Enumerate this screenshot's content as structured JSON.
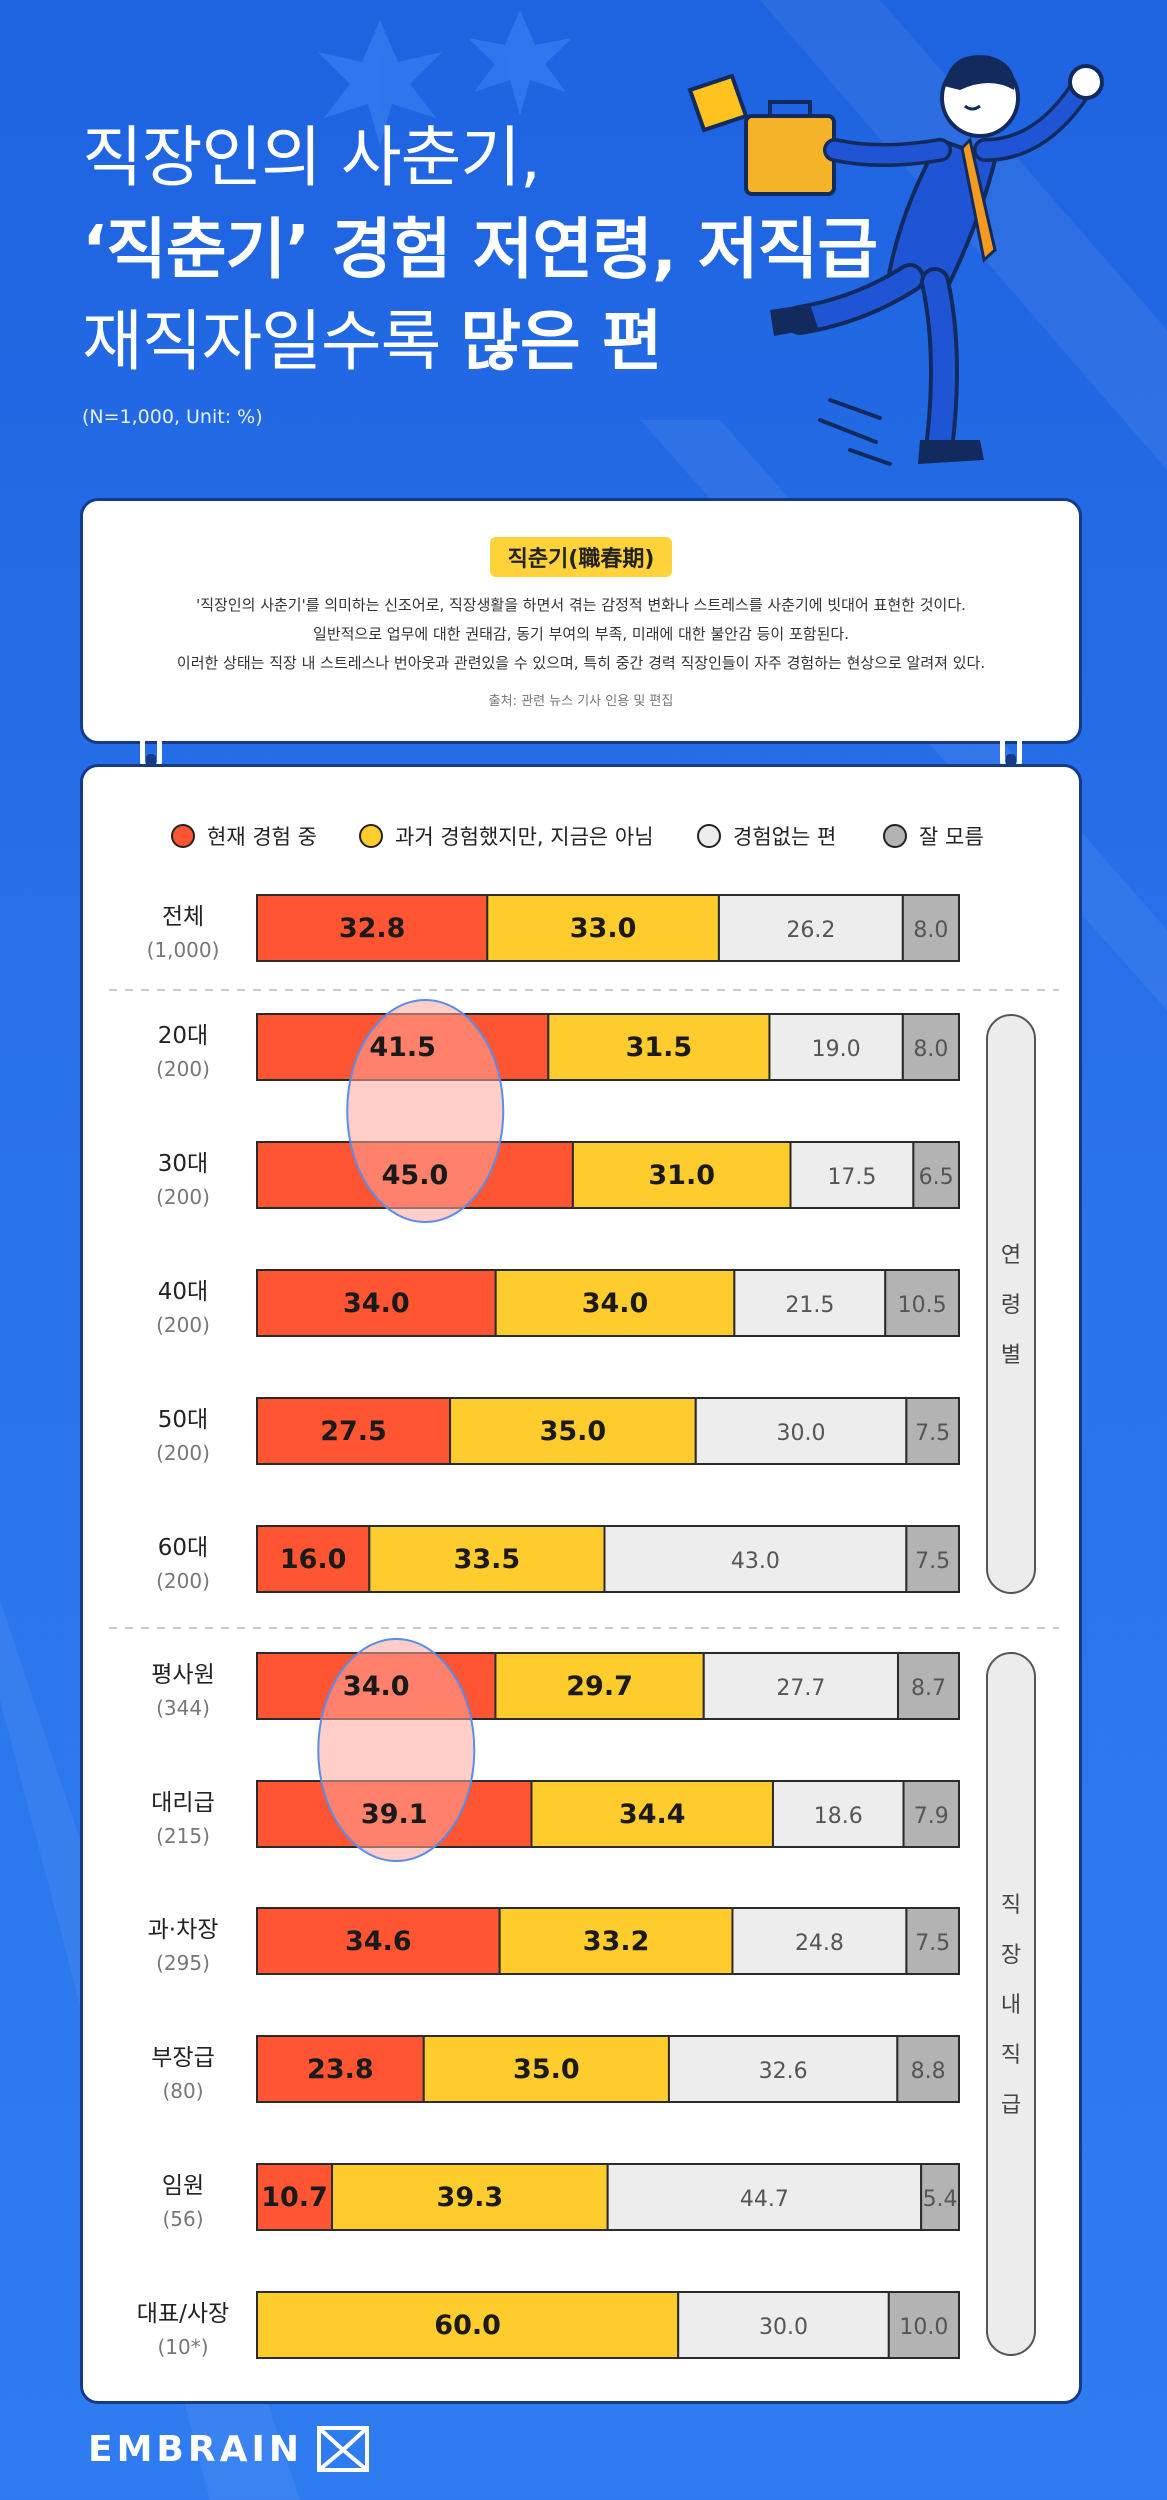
{
  "header": {
    "title_line1": "직장인의 사춘기,",
    "title_line2": "‘직춘기’ 경험 저연령, 저직급",
    "title_line3_a": "재직자일수록 ",
    "title_line3_b": "많은 편",
    "unit_note": "(N=1,000, Unit: %)"
  },
  "definition": {
    "title": "직춘기(職春期)",
    "lines": [
      "'직장인의 사춘기'를 의미하는 신조어로, 직장생활을 하면서 겪는 감정적 변화나 스트레스를 사춘기에 빗대어 표현한 것이다.",
      "일반적으로 업무에 대한 권태감, 동기 부여의 부족, 미래에 대한 불안감 등이 포함된다.",
      "이러한 상태는 직장 내 스트레스나 번아웃과 관련있을 수 있으며,  특히 중간 경력 직장인들이 자주 경험하는 현상으로 알려져 있다."
    ],
    "source": "출처: 관련 뉴스 기사 인용 및 편집"
  },
  "colors": {
    "current": "#ff5533",
    "past": "#ffcc2e",
    "never": "#ededed",
    "unknown": "#b3b3b3",
    "highlight_fill": "#ffa69a",
    "highlight_ring": "#5b8de8",
    "card_border": "#153a8a",
    "side_label_bg": "#ececec"
  },
  "chart_data": {
    "type": "bar",
    "orientation": "horizontal",
    "stacked": true,
    "xlim": [
      0,
      100
    ],
    "series": [
      {
        "name": "현재 경험 중",
        "color": "#ff5533"
      },
      {
        "name": "과거 경험했지만, 지금은 아님",
        "color": "#ffcc2e"
      },
      {
        "name": "경험없는 편",
        "color": "#ededed"
      },
      {
        "name": "잘 모름",
        "color": "#b3b3b3"
      }
    ],
    "rows": [
      {
        "label": "전체",
        "n": "(1,000)",
        "values": [
          32.8,
          33.0,
          26.2,
          8.0
        ],
        "labels": [
          "32.8",
          "33.0",
          "26.2",
          "8.0"
        ]
      },
      {
        "label": "20대",
        "n": "(200)",
        "values": [
          41.5,
          31.5,
          19.0,
          8.0
        ],
        "labels": [
          "41.5",
          "31.5",
          "19.0",
          "8.0"
        ],
        "highlight": true
      },
      {
        "label": "30대",
        "n": "(200)",
        "values": [
          45.0,
          31.0,
          17.5,
          6.5
        ],
        "labels": [
          "45.0",
          "31.0",
          "17.5",
          "6.5"
        ],
        "highlight": true
      },
      {
        "label": "40대",
        "n": "(200)",
        "values": [
          34.0,
          34.0,
          21.5,
          10.5
        ],
        "labels": [
          "34.0",
          "34.0",
          "21.5",
          "10.5"
        ]
      },
      {
        "label": "50대",
        "n": "(200)",
        "values": [
          27.5,
          35.0,
          30.0,
          7.5
        ],
        "labels": [
          "27.5",
          "35.0",
          "30.0",
          "7.5"
        ]
      },
      {
        "label": "60대",
        "n": "(200)",
        "values": [
          16.0,
          33.5,
          43.0,
          7.5
        ],
        "labels": [
          "16.0",
          "33.5",
          "43.0",
          "7.5"
        ]
      },
      {
        "label": "평사원",
        "n": "(344)",
        "values": [
          34.0,
          29.7,
          27.7,
          8.7
        ],
        "labels": [
          "34.0",
          "29.7",
          "27.7",
          "8.7"
        ],
        "highlight": true
      },
      {
        "label": "대리급",
        "n": "(215)",
        "values": [
          39.1,
          34.4,
          18.6,
          7.9
        ],
        "labels": [
          "39.1",
          "34.4",
          "18.6",
          "7.9"
        ],
        "highlight": true
      },
      {
        "label": "과·차장",
        "n": "(295)",
        "values": [
          34.6,
          33.2,
          24.8,
          7.5
        ],
        "labels": [
          "34.6",
          "33.2",
          "24.8",
          "7.5"
        ]
      },
      {
        "label": "부장급",
        "n": "(80)",
        "values": [
          23.8,
          35.0,
          32.6,
          8.8
        ],
        "labels": [
          "23.8",
          "35.0",
          "32.6",
          "8.8"
        ]
      },
      {
        "label": "임원",
        "n": "(56)",
        "values": [
          10.7,
          39.3,
          44.7,
          5.4
        ],
        "labels": [
          "10.7",
          "39.3",
          "44.7",
          "5.4"
        ]
      },
      {
        "label": "대표/사장",
        "n": "(10*)",
        "values": [
          0,
          60.0,
          30.0,
          10.0
        ],
        "labels": [
          "",
          "60.0",
          "30.0",
          "10.0"
        ]
      }
    ],
    "groups": [
      {
        "label": "연령별"
      },
      {
        "label": "직장내직급"
      }
    ]
  },
  "footer": {
    "logo_text": "EMBRAIN"
  }
}
